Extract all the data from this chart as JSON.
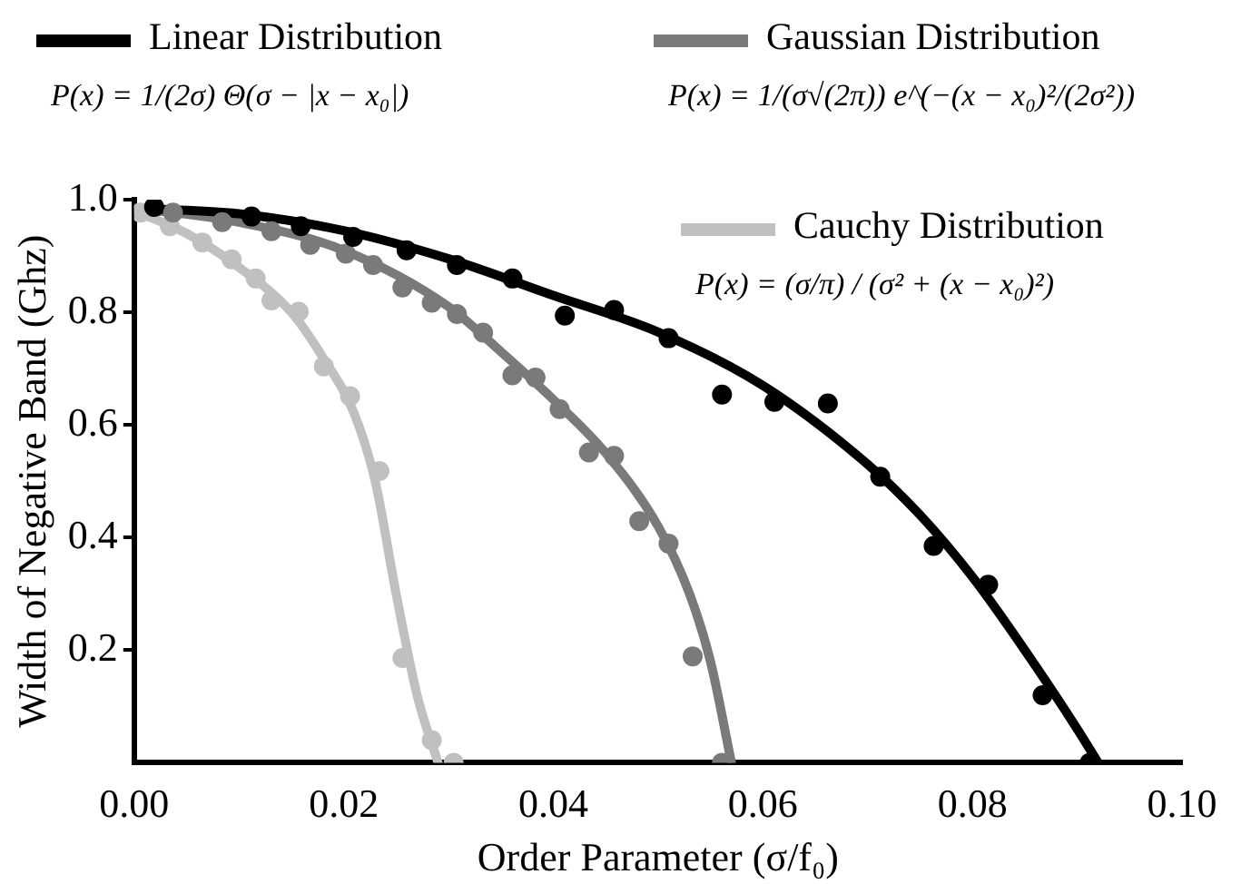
{
  "chart_data": {
    "type": "scatter",
    "xlabel": "Order Parameter (σ/f₀)",
    "ylabel": "Width of Negative Band (Ghz)",
    "xlim": [
      0,
      0.1
    ],
    "ylim": [
      0,
      1
    ],
    "xticks": [
      {
        "value": 0,
        "label": "0.00"
      },
      {
        "value": 0.02,
        "label": "0.02"
      },
      {
        "value": 0.04,
        "label": "0.04"
      },
      {
        "value": 0.06,
        "label": "0.06"
      },
      {
        "value": 0.08,
        "label": "0.08"
      },
      {
        "value": 0.1,
        "label": "0.10"
      }
    ],
    "yticks": [
      {
        "value": 0.2,
        "label": "0.2"
      },
      {
        "value": 0.4,
        "label": "0.4"
      },
      {
        "value": 0.6,
        "label": "0.6"
      },
      {
        "value": 0.8,
        "label": "0.8"
      },
      {
        "value": 1,
        "label": "1.0"
      }
    ],
    "grid": false,
    "legend": "top",
    "marker": "circle",
    "annotations": [
      "P(x) = 1/(2σ) Θ(σ − |x − x₀|)",
      "P(x) = 1/(σ√(2π)) e^(−(x − x₀)²/(2σ²))",
      "P(x) = (σ/π) / (σ² + (x − x₀)²)"
    ],
    "series": [
      {
        "type": "line",
        "marker": "none",
        "name": "Linear Distribution",
        "color": "#000000",
        "x": [
          0,
          0.01,
          0.02,
          0.03,
          0.04,
          0.05,
          0.06,
          0.07,
          0.075,
          0.08,
          0.085,
          0.09,
          0.092
        ],
        "values": [
          0.985,
          0.975,
          0.945,
          0.895,
          0.83,
          0.765,
          0.67,
          0.53,
          0.44,
          0.33,
          0.2,
          0.06,
          0
        ]
      },
      {
        "type": "line",
        "marker": "none",
        "name": "Gaussian Distribution",
        "color": "#7a7a7a",
        "x": [
          0,
          0.01,
          0.02,
          0.03,
          0.035,
          0.04,
          0.045,
          0.05,
          0.053,
          0.055,
          0.057
        ],
        "values": [
          0.985,
          0.96,
          0.91,
          0.81,
          0.73,
          0.645,
          0.55,
          0.42,
          0.3,
          0.18,
          0
        ]
      },
      {
        "type": "line",
        "marker": "none",
        "name": "Cauchy Distribution",
        "color": "#c0c0c0",
        "x": [
          0,
          0.005,
          0.01,
          0.015,
          0.018,
          0.021,
          0.023,
          0.025,
          0.027,
          0.029
        ],
        "values": [
          0.98,
          0.94,
          0.88,
          0.8,
          0.72,
          0.62,
          0.5,
          0.3,
          0.12,
          0
        ]
      },
      {
        "color": "#000000",
        "x": [
          0.0019,
          0.0112,
          0.0159,
          0.0209,
          0.026,
          0.0308,
          0.0361,
          0.0411,
          0.0458,
          0.051,
          0.0561,
          0.0611,
          0.0662,
          0.0712,
          0.0763,
          0.0815,
          0.0867,
          0.0912
        ],
        "values": [
          0.987,
          0.97,
          0.953,
          0.934,
          0.91,
          0.884,
          0.86,
          0.794,
          0.804,
          0.754,
          0.654,
          0.641,
          0.638,
          0.508,
          0.385,
          0.316,
          0.12,
          0
        ]
      },
      {
        "color": "#7a7a7a",
        "x": [
          0.0037,
          0.0084,
          0.0131,
          0.0168,
          0.0202,
          0.0228,
          0.0256,
          0.0284,
          0.0308,
          0.0333,
          0.0361,
          0.0383,
          0.0406,
          0.0434,
          0.0458,
          0.0482,
          0.051,
          0.0533,
          0.0561
        ],
        "values": [
          0.977,
          0.96,
          0.944,
          0.92,
          0.904,
          0.884,
          0.844,
          0.817,
          0.797,
          0.764,
          0.688,
          0.684,
          0.628,
          0.551,
          0.545,
          0.429,
          0.389,
          0.189,
          0
        ]
      },
      {
        "color": "#c0c0c0",
        "x": [
          0.0006,
          0.0034,
          0.0065,
          0.0093,
          0.0116,
          0.0131,
          0.0157,
          0.0181,
          0.0206,
          0.0234,
          0.0256,
          0.0284,
          0.0305
        ],
        "values": [
          0.977,
          0.953,
          0.924,
          0.894,
          0.86,
          0.821,
          0.801,
          0.704,
          0.651,
          0.518,
          0.186,
          0.04,
          0
        ]
      }
    ]
  }
}
